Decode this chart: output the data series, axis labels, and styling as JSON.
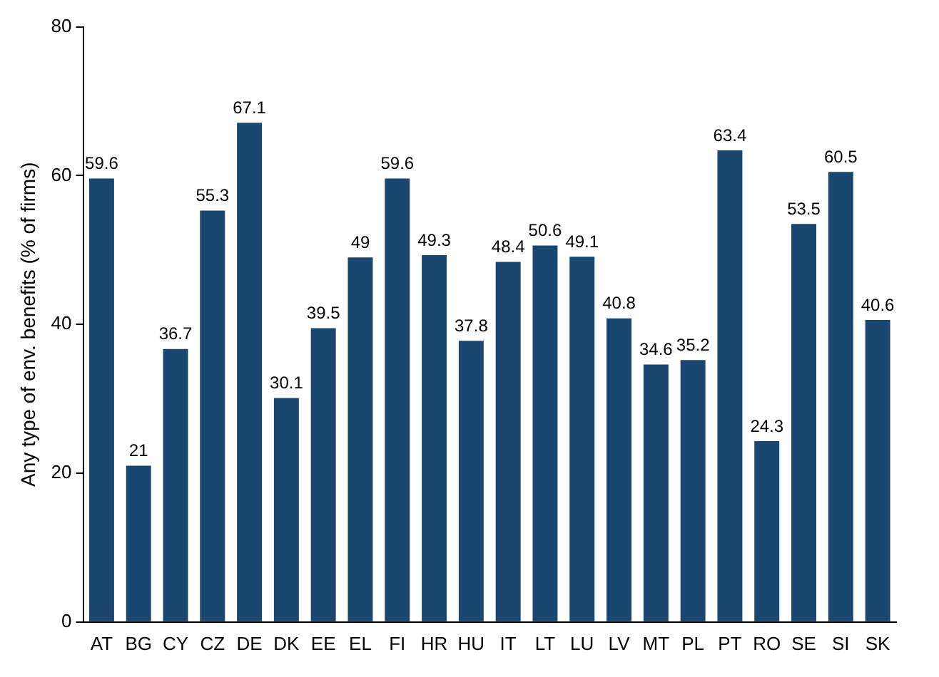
{
  "chart_data": {
    "type": "bar",
    "ylabel": "Any type of env. benefits (% of firms)",
    "categories": [
      "AT",
      "BG",
      "CY",
      "CZ",
      "DE",
      "DK",
      "EE",
      "EL",
      "FI",
      "HR",
      "HU",
      "IT",
      "LT",
      "LU",
      "LV",
      "MT",
      "PL",
      "PT",
      "RO",
      "SE",
      "SI",
      "SK"
    ],
    "values": [
      59.6,
      21,
      36.7,
      55.3,
      67.1,
      30.1,
      39.5,
      49,
      59.6,
      49.3,
      37.8,
      48.4,
      50.6,
      49.1,
      40.8,
      34.6,
      35.2,
      63.4,
      24.3,
      53.5,
      60.5,
      40.6
    ],
    "color": "#1a476f",
    "ylim": [
      0,
      80
    ],
    "yticks": [
      0,
      20,
      40,
      60,
      80
    ],
    "grid": false,
    "data_labels": true,
    "legend": false
  }
}
